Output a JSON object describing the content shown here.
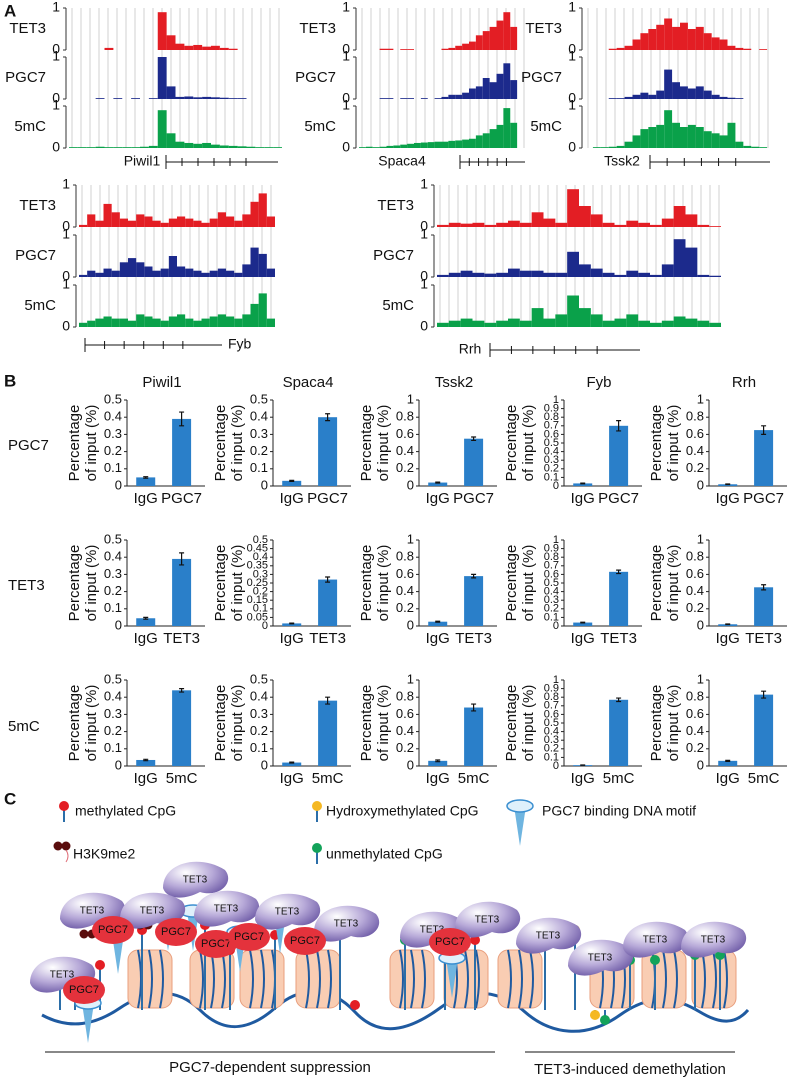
{
  "panel_labels": [
    "A",
    "B",
    "C"
  ],
  "chart_data": [
    {
      "type": "track",
      "gene": "Piwil1",
      "ylim": [
        0,
        1
      ],
      "yticks": [
        0,
        1
      ],
      "series": [
        {
          "name": "TET3",
          "color": "#e31e24",
          "values": [
            0,
            0,
            0,
            0,
            0.05,
            0,
            0,
            0,
            0,
            0,
            0.9,
            0.35,
            0.15,
            0.1,
            0.12,
            0.08,
            0.1,
            0.05,
            0.03,
            0,
            0,
            0,
            0,
            0
          ]
        },
        {
          "name": "PGC7",
          "color": "#1c2a8c",
          "values": [
            0,
            0,
            0,
            0.02,
            0,
            0.02,
            0,
            0.02,
            0,
            0.02,
            1,
            0.3,
            0.05,
            0.06,
            0.04,
            0.05,
            0.04,
            0.03,
            0.02,
            0.02,
            0,
            0,
            0,
            0
          ]
        },
        {
          "name": "5mC",
          "color": "#0aa14a",
          "values": [
            0.02,
            0.02,
            0.02,
            0.03,
            0.02,
            0.02,
            0.02,
            0.02,
            0.03,
            0.05,
            0.9,
            0.35,
            0.15,
            0.12,
            0.1,
            0.12,
            0.08,
            0.06,
            0.05,
            0.04,
            0.03,
            0.02,
            0.02,
            0.02
          ]
        }
      ]
    },
    {
      "type": "track",
      "gene": "Spaca4",
      "ylim": [
        0,
        1
      ],
      "yticks": [
        0,
        1
      ],
      "series": [
        {
          "name": "TET3",
          "color": "#e31e24",
          "values": [
            0,
            0,
            0,
            0.03,
            0.03,
            0,
            0.02,
            0.02,
            0,
            0,
            0,
            0,
            0.03,
            0.05,
            0.1,
            0.15,
            0.2,
            0.35,
            0.45,
            0.55,
            0.7,
            0.9,
            0.55,
            0
          ]
        },
        {
          "name": "PGC7",
          "color": "#1c2a8c",
          "values": [
            0,
            0,
            0,
            0.02,
            0.02,
            0,
            0.02,
            0.02,
            0,
            0.02,
            0,
            0.02,
            0.05,
            0.1,
            0.1,
            0.15,
            0.25,
            0.3,
            0.5,
            0.4,
            0.6,
            0.85,
            0.45,
            0
          ]
        },
        {
          "name": "5mC",
          "color": "#0aa14a",
          "values": [
            0.02,
            0.03,
            0.02,
            0.03,
            0.05,
            0.06,
            0.08,
            0.1,
            0.12,
            0.13,
            0.14,
            0.15,
            0.15,
            0.17,
            0.18,
            0.2,
            0.22,
            0.3,
            0.35,
            0.45,
            0.55,
            0.95,
            0.6,
            0
          ]
        }
      ]
    },
    {
      "type": "track",
      "gene": "Tssk2",
      "ylim": [
        0,
        1
      ],
      "yticks": [
        0,
        1
      ],
      "series": [
        {
          "name": "TET3",
          "color": "#e31e24",
          "values": [
            0,
            0,
            0,
            0.03,
            0.05,
            0.1,
            0.25,
            0.4,
            0.5,
            0.6,
            0.75,
            0.55,
            0.65,
            0.5,
            0.55,
            0.4,
            0.3,
            0.25,
            0.1,
            0.05,
            0.03,
            0,
            0.02,
            0
          ]
        },
        {
          "name": "PGC7",
          "color": "#1c2a8c",
          "values": [
            0,
            0,
            0,
            0.02,
            0.02,
            0.05,
            0.1,
            0.15,
            0.1,
            0.2,
            0.7,
            0.4,
            0.3,
            0.25,
            0.3,
            0.2,
            0.1,
            0.05,
            0.03,
            0.02,
            0,
            0,
            0,
            0
          ]
        },
        {
          "name": "5mC",
          "color": "#0aa14a",
          "values": [
            0,
            0.02,
            0.02,
            0.03,
            0.05,
            0.15,
            0.3,
            0.45,
            0.5,
            0.55,
            0.9,
            0.6,
            0.5,
            0.55,
            0.5,
            0.4,
            0.35,
            0.3,
            0.6,
            0.15,
            0.05,
            0.03,
            0.02,
            0
          ]
        }
      ]
    },
    {
      "type": "track",
      "gene": "Fyb",
      "ylim": [
        0,
        1
      ],
      "yticks": [
        0,
        1
      ],
      "series": [
        {
          "name": "TET3",
          "color": "#e31e24",
          "values": [
            0.05,
            0.3,
            0.15,
            0.55,
            0.35,
            0.2,
            0.15,
            0.3,
            0.25,
            0.15,
            0.1,
            0.2,
            0.25,
            0.2,
            0.15,
            0.1,
            0.2,
            0.35,
            0.25,
            0.15,
            0.3,
            0.6,
            0.8,
            0.25
          ]
        },
        {
          "name": "PGC7",
          "color": "#1c2a8c",
          "values": [
            0.05,
            0.15,
            0.1,
            0.2,
            0.15,
            0.35,
            0.45,
            0.35,
            0.25,
            0.15,
            0.2,
            0.5,
            0.25,
            0.2,
            0.15,
            0.1,
            0.15,
            0.2,
            0.15,
            0.1,
            0.3,
            0.7,
            0.55,
            0.2
          ]
        },
        {
          "name": "5mC",
          "color": "#0aa14a",
          "values": [
            0.1,
            0.15,
            0.2,
            0.25,
            0.2,
            0.2,
            0.15,
            0.3,
            0.25,
            0.2,
            0.15,
            0.25,
            0.3,
            0.2,
            0.15,
            0.2,
            0.25,
            0.3,
            0.25,
            0.2,
            0.3,
            0.55,
            0.8,
            0.2
          ]
        }
      ]
    },
    {
      "type": "track",
      "gene": "Rrh",
      "ylim": [
        0,
        1
      ],
      "yticks": [
        0,
        1
      ],
      "series": [
        {
          "name": "TET3",
          "color": "#e31e24",
          "values": [
            0.05,
            0.1,
            0.08,
            0.1,
            0.05,
            0.1,
            0.15,
            0.1,
            0.35,
            0.2,
            0.1,
            0.9,
            0.5,
            0.3,
            0.1,
            0.05,
            0.15,
            0.1,
            0.05,
            0.2,
            0.5,
            0.3,
            0.05,
            0.02
          ]
        },
        {
          "name": "PGC7",
          "color": "#1c2a8c",
          "values": [
            0.05,
            0.1,
            0.15,
            0.1,
            0.08,
            0.1,
            0.2,
            0.15,
            0.15,
            0.1,
            0.1,
            0.6,
            0.3,
            0.2,
            0.1,
            0.05,
            0.15,
            0.1,
            0.05,
            0.3,
            0.9,
            0.7,
            0.05,
            0.03
          ]
        },
        {
          "name": "5mC",
          "color": "#0aa14a",
          "values": [
            0.1,
            0.15,
            0.2,
            0.15,
            0.1,
            0.15,
            0.2,
            0.15,
            0.45,
            0.2,
            0.3,
            0.75,
            0.45,
            0.3,
            0.15,
            0.2,
            0.3,
            0.15,
            0.1,
            0.15,
            0.25,
            0.2,
            0.15,
            0.1
          ]
        }
      ]
    },
    {
      "type": "bar",
      "categories": [
        "IgG",
        "PGC7"
      ],
      "values": [
        0.05,
        0.39
      ],
      "errors": [
        0.004,
        0.04
      ],
      "color": "#2a7fc9",
      "ylabel": [
        "Percentage",
        "of input (%)"
      ],
      "ylim": [
        0,
        0.5
      ],
      "yticks": [
        0,
        0.1,
        0.2,
        0.3,
        0.4,
        0.5
      ]
    },
    {
      "type": "bar",
      "categories": [
        "IgG",
        "PGC7"
      ],
      "values": [
        0.03,
        0.4
      ],
      "errors": [
        0.003,
        0.02
      ],
      "color": "#2a7fc9",
      "ylabel": [
        "Percentage",
        "of input (%)"
      ],
      "ylim": [
        0,
        0.5
      ],
      "yticks": [
        0,
        0.1,
        0.2,
        0.3,
        0.4,
        0.5
      ]
    },
    {
      "type": "bar",
      "categories": [
        "IgG",
        "PGC7"
      ],
      "values": [
        0.04,
        0.55
      ],
      "errors": [
        0.005,
        0.02
      ],
      "color": "#2a7fc9",
      "ylabel": [
        "Percentage",
        "of input (%)"
      ],
      "ylim": [
        0,
        1
      ],
      "yticks": [
        0,
        0.2,
        0.4,
        0.6,
        0.8,
        1
      ]
    },
    {
      "type": "bar",
      "categories": [
        "IgG",
        "PGC7"
      ],
      "values": [
        0.03,
        0.7
      ],
      "errors": [
        0.004,
        0.06
      ],
      "color": "#2a7fc9",
      "ylabel": [
        "Percentage",
        "of input (%)"
      ],
      "ylim": [
        0,
        1
      ],
      "yticks": [
        0,
        0.1,
        0.2,
        0.3,
        0.4,
        0.5,
        0.6,
        0.7,
        0.8,
        0.9,
        1
      ]
    },
    {
      "type": "bar",
      "categories": [
        "IgG",
        "PGC7"
      ],
      "values": [
        0.02,
        0.65
      ],
      "errors": [
        0.003,
        0.05
      ],
      "color": "#2a7fc9",
      "ylabel": [
        "Percentage",
        "of input (%)"
      ],
      "ylim": [
        0,
        1
      ],
      "yticks": [
        0,
        0.2,
        0.4,
        0.6,
        0.8,
        1
      ]
    },
    {
      "type": "bar",
      "categories": [
        "IgG",
        "TET3"
      ],
      "values": [
        0.045,
        0.39
      ],
      "errors": [
        0.005,
        0.035
      ],
      "color": "#2a7fc9",
      "ylabel": [
        "Percentage",
        "of input (%)"
      ],
      "ylim": [
        0,
        0.5
      ],
      "yticks": [
        0,
        0.1,
        0.2,
        0.3,
        0.4,
        0.5
      ]
    },
    {
      "type": "bar",
      "categories": [
        "IgG",
        "TET3"
      ],
      "values": [
        0.015,
        0.27
      ],
      "errors": [
        0.002,
        0.015
      ],
      "color": "#2a7fc9",
      "ylabel": [
        "Percentage",
        "of input (%)"
      ],
      "ylim": [
        0,
        0.5
      ],
      "yticks": [
        0,
        0.05,
        0.1,
        0.15,
        0.2,
        0.25,
        0.3,
        0.35,
        0.4,
        0.45,
        0.5
      ]
    },
    {
      "type": "bar",
      "categories": [
        "IgG",
        "TET3"
      ],
      "values": [
        0.05,
        0.58
      ],
      "errors": [
        0.005,
        0.02
      ],
      "color": "#2a7fc9",
      "ylabel": [
        "Percentage",
        "of input (%)"
      ],
      "ylim": [
        0,
        1
      ],
      "yticks": [
        0,
        0.2,
        0.4,
        0.6,
        0.8,
        1
      ]
    },
    {
      "type": "bar",
      "categories": [
        "IgG",
        "TET3"
      ],
      "values": [
        0.04,
        0.63
      ],
      "errors": [
        0.004,
        0.02
      ],
      "color": "#2a7fc9",
      "ylabel": [
        "Percentage",
        "of input (%)"
      ],
      "ylim": [
        0,
        1
      ],
      "yticks": [
        0,
        0.1,
        0.2,
        0.3,
        0.4,
        0.5,
        0.6,
        0.7,
        0.8,
        0.9,
        1
      ]
    },
    {
      "type": "bar",
      "categories": [
        "IgG",
        "TET3"
      ],
      "values": [
        0.02,
        0.45
      ],
      "errors": [
        0.003,
        0.03
      ],
      "color": "#2a7fc9",
      "ylabel": [
        "Percentage",
        "of input (%)"
      ],
      "ylim": [
        0,
        1
      ],
      "yticks": [
        0,
        0.2,
        0.4,
        0.6,
        0.8,
        1
      ]
    },
    {
      "type": "bar",
      "categories": [
        "IgG",
        "5mC"
      ],
      "values": [
        0.035,
        0.44
      ],
      "errors": [
        0.004,
        0.01
      ],
      "color": "#2a7fc9",
      "ylabel": [
        "Percentage",
        "of input (%)"
      ],
      "ylim": [
        0,
        0.5
      ],
      "yticks": [
        0,
        0.1,
        0.2,
        0.3,
        0.4,
        0.5
      ]
    },
    {
      "type": "bar",
      "categories": [
        "IgG",
        "5mC"
      ],
      "values": [
        0.02,
        0.38
      ],
      "errors": [
        0.003,
        0.02
      ],
      "color": "#2a7fc9",
      "ylabel": [
        "Percentage",
        "of input (%)"
      ],
      "ylim": [
        0,
        0.5
      ],
      "yticks": [
        0,
        0.1,
        0.2,
        0.3,
        0.4,
        0.5
      ]
    },
    {
      "type": "bar",
      "categories": [
        "IgG",
        "5mC"
      ],
      "values": [
        0.06,
        0.68
      ],
      "errors": [
        0.01,
        0.04
      ],
      "color": "#2a7fc9",
      "ylabel": [
        "Percentage",
        "of input (%)"
      ],
      "ylim": [
        0,
        1
      ],
      "yticks": [
        0,
        0.2,
        0.4,
        0.6,
        0.8,
        1
      ]
    },
    {
      "type": "bar",
      "categories": [
        "IgG",
        "5mC"
      ],
      "values": [
        0.01,
        0.77
      ],
      "errors": [
        0.002,
        0.02
      ],
      "color": "#2a7fc9",
      "ylabel": [
        "Percentage",
        "of input (%)"
      ],
      "ylim": [
        0,
        1
      ],
      "yticks": [
        0,
        0.1,
        0.2,
        0.3,
        0.4,
        0.5,
        0.6,
        0.7,
        0.8,
        0.9,
        1
      ]
    },
    {
      "type": "bar",
      "categories": [
        "IgG",
        "5mC"
      ],
      "values": [
        0.06,
        0.83
      ],
      "errors": [
        0.006,
        0.04
      ],
      "color": "#2a7fc9",
      "ylabel": [
        "Percentage",
        "of input (%)"
      ],
      "ylim": [
        0,
        1
      ],
      "yticks": [
        0,
        0.2,
        0.4,
        0.6,
        0.8,
        1
      ]
    }
  ],
  "panel_b": {
    "columns": [
      "Piwil1",
      "Spaca4",
      "Tssk2",
      "Fyb",
      "Rrh"
    ],
    "rows": [
      "PGC7",
      "TET3",
      "5mC"
    ]
  },
  "panel_c": {
    "legend": [
      "methylated CpG",
      "Hydroxymethylated CpG",
      "PGC7 binding DNA motif",
      "H3K9me2",
      "unmethylated CpG"
    ],
    "tet3_labels": [
      "TET3",
      "TET3",
      "TET3",
      "TET3",
      "TET3",
      "TET3",
      "TET3",
      "TET3",
      "TET3",
      "TET3",
      "TET3",
      "TET3",
      "TET3"
    ],
    "pgc7_labels": [
      "PGC7",
      "PGC7",
      "PGC7",
      "PGC7",
      "PGC7",
      "PGC7",
      "PGC7"
    ],
    "phases": [
      "PGC7-dependent suppression",
      "TET3-induced demethylation"
    ]
  }
}
